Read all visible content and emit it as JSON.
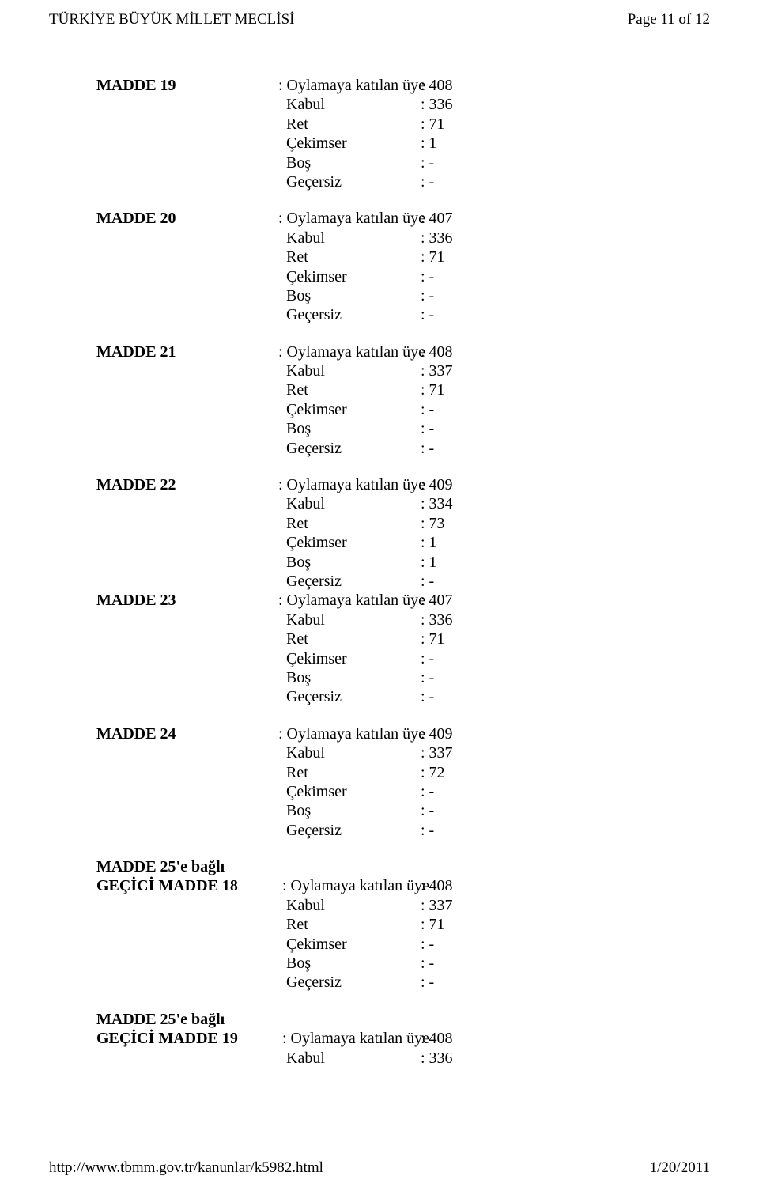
{
  "header": {
    "left": "TÜRKİYE BÜYÜK MİLLET MECLİSİ",
    "right": "Page 11 of 12"
  },
  "footer": {
    "left": "http://www.tbmm.gov.tr/kanunlar/k5982.html",
    "right": "1/20/2011"
  },
  "blocks": [
    {
      "name": "MADDE 19",
      "with_section": false,
      "tight": false,
      "rows": [
        {
          "label": "MADDE 19",
          "bold": true,
          "key": ": Oylamaya katılan üye",
          "val": ": 408"
        },
        {
          "label": "",
          "bold": false,
          "key": "  Kabul",
          "val": ": 336"
        },
        {
          "label": "",
          "bold": false,
          "key": "  Ret",
          "val": ": 71"
        },
        {
          "label": "",
          "bold": false,
          "key": "  Çekimser",
          "val": ": 1"
        },
        {
          "label": "",
          "bold": false,
          "key": "  Boş",
          "val": ": -"
        },
        {
          "label": "",
          "bold": false,
          "key": "  Geçersiz",
          "val": ": -"
        }
      ]
    },
    {
      "name": "MADDE 20",
      "with_section": false,
      "tight": false,
      "rows": [
        {
          "label": "MADDE 20",
          "bold": true,
          "key": ": Oylamaya katılan üye",
          "val": ": 407"
        },
        {
          "label": "",
          "bold": false,
          "key": "  Kabul",
          "val": ": 336"
        },
        {
          "label": "",
          "bold": false,
          "key": "  Ret",
          "val": ": 71"
        },
        {
          "label": "",
          "bold": false,
          "key": "  Çekimser",
          "val": ": -"
        },
        {
          "label": "",
          "bold": false,
          "key": "  Boş",
          "val": ": -"
        },
        {
          "label": "",
          "bold": false,
          "key": "  Geçersiz",
          "val": ": -"
        }
      ]
    },
    {
      "name": "MADDE 21",
      "with_section": false,
      "tight": false,
      "rows": [
        {
          "label": "MADDE 21",
          "bold": true,
          "key": ": Oylamaya katılan üye",
          "val": ": 408"
        },
        {
          "label": "",
          "bold": false,
          "key": "  Kabul",
          "val": ": 337"
        },
        {
          "label": "",
          "bold": false,
          "key": "  Ret",
          "val": ": 71"
        },
        {
          "label": "",
          "bold": false,
          "key": "  Çekimser",
          "val": ": -"
        },
        {
          "label": "",
          "bold": false,
          "key": "  Boş",
          "val": ": -"
        },
        {
          "label": "",
          "bold": false,
          "key": "  Geçersiz",
          "val": ": -"
        }
      ]
    },
    {
      "name": "MADDE 22",
      "with_section": false,
      "tight": true,
      "rows": [
        {
          "label": "MADDE 22",
          "bold": true,
          "key": ": Oylamaya katılan üye",
          "val": ": 409"
        },
        {
          "label": "",
          "bold": false,
          "key": "  Kabul",
          "val": ": 334"
        },
        {
          "label": "",
          "bold": false,
          "key": "  Ret",
          "val": ": 73"
        },
        {
          "label": "",
          "bold": false,
          "key": "  Çekimser",
          "val": ": 1"
        },
        {
          "label": "",
          "bold": false,
          "key": "  Boş",
          "val": ": 1"
        },
        {
          "label": "",
          "bold": false,
          "key": "  Geçersiz",
          "val": ": -"
        }
      ]
    },
    {
      "name": "MADDE 23",
      "with_section": false,
      "tight": false,
      "rows": [
        {
          "label": "MADDE 23",
          "bold": true,
          "key": ": Oylamaya katılan üye",
          "val": ": 407"
        },
        {
          "label": "",
          "bold": false,
          "key": "  Kabul",
          "val": ": 336"
        },
        {
          "label": "",
          "bold": false,
          "key": "  Ret",
          "val": ": 71"
        },
        {
          "label": "",
          "bold": false,
          "key": "  Çekimser",
          "val": ": -"
        },
        {
          "label": "",
          "bold": false,
          "key": "  Boş",
          "val": ": -"
        },
        {
          "label": "",
          "bold": false,
          "key": "  Geçersiz",
          "val": ": -"
        }
      ]
    },
    {
      "name": "MADDE 24",
      "with_section": false,
      "tight": false,
      "rows": [
        {
          "label": "MADDE 24",
          "bold": true,
          "key": ": Oylamaya katılan üye",
          "val": ": 409"
        },
        {
          "label": "",
          "bold": false,
          "key": "  Kabul",
          "val": ": 337"
        },
        {
          "label": "",
          "bold": false,
          "key": "  Ret",
          "val": ": 72"
        },
        {
          "label": "",
          "bold": false,
          "key": "  Çekimser",
          "val": ": -"
        },
        {
          "label": "",
          "bold": false,
          "key": "  Boş",
          "val": ": -"
        },
        {
          "label": "",
          "bold": false,
          "key": "  Geçersiz",
          "val": ": -"
        }
      ]
    },
    {
      "name": "GECICI 18",
      "with_section": true,
      "section_line": "MADDE 25'e bağlı",
      "tight": false,
      "rows": [
        {
          "label": "GEÇİCİ MADDE 18",
          "bold": true,
          "key": " : Oylamaya katılan üye",
          "val": ": 408"
        },
        {
          "label": "",
          "bold": false,
          "key": "  Kabul",
          "val": ": 337"
        },
        {
          "label": "",
          "bold": false,
          "key": "  Ret",
          "val": ": 71"
        },
        {
          "label": "",
          "bold": false,
          "key": "  Çekimser",
          "val": ": -"
        },
        {
          "label": "",
          "bold": false,
          "key": "  Boş",
          "val": ": -"
        },
        {
          "label": "",
          "bold": false,
          "key": "  Geçersiz",
          "val": ": -"
        }
      ]
    },
    {
      "name": "GECICI 19",
      "with_section": true,
      "section_line": "MADDE 25'e bağlı",
      "tight": false,
      "rows": [
        {
          "label": "GEÇİCİ MADDE 19",
          "bold": true,
          "key": " : Oylamaya katılan üye",
          "val": ": 408"
        },
        {
          "label": "",
          "bold": false,
          "key": "  Kabul",
          "val": ": 336"
        }
      ]
    }
  ]
}
